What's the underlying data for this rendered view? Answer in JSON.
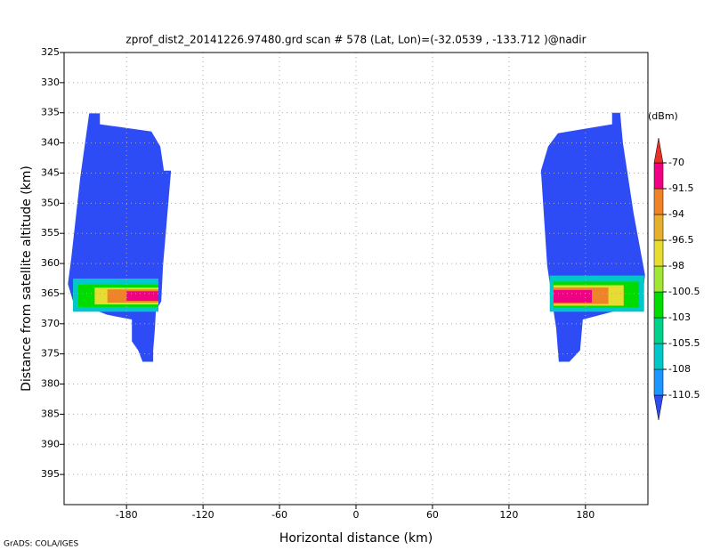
{
  "chart_data": {
    "type": "field",
    "title": "zprof_dist2_20141226.97480.grd  scan # 578  (Lat, Lon)=(-32.0539 , -133.712 )@nadir",
    "xlabel": "Horizontal distance (km)",
    "ylabel": "Distance from satellite altitude (km)",
    "footer": "GrADS: COLA/IGES",
    "colorbar_label": "(dBm)",
    "xlim": [
      -229,
      229
    ],
    "ylim": [
      325,
      400
    ],
    "y_reversed": true,
    "xticks": [
      -180,
      -120,
      -60,
      0,
      60,
      120,
      180
    ],
    "yticks": [
      325,
      330,
      335,
      340,
      345,
      350,
      355,
      360,
      365,
      370,
      375,
      380,
      385,
      390,
      395
    ],
    "grid": true,
    "levels": [
      -110.5,
      -108,
      -105.5,
      -103,
      -100.5,
      -98,
      -96.5,
      -94,
      -91.5,
      -70
    ],
    "level_colors": [
      "#2d4cf5",
      "#1e96ff",
      "#00c8c8",
      "#00d28c",
      "#00dc00",
      "#a0e632",
      "#e6dc32",
      "#e6af2d",
      "#f08228",
      "#f00082",
      "#e63228"
    ],
    "regions": [
      {
        "value": -112,
        "x": [
          -209.3,
          -200.9,
          -200.9,
          -160.5,
          -153.5,
          -150.7,
          -145.1,
          -151.4,
          -152.8,
          -157.0,
          -157.7,
          -159.1,
          -159.1,
          -167.4,
          -170.9,
          -175.8,
          -175.8,
          -195.3,
          -221.9,
          -226.0,
          -223.3,
          -216.3
        ],
        "y": [
          335.1,
          335.1,
          336.9,
          338.1,
          340.6,
          344.6,
          344.6,
          360.4,
          366.3,
          367.8,
          370.7,
          374.4,
          376.3,
          376.3,
          374.4,
          372.9,
          369.3,
          368.5,
          366.3,
          363.4,
          359.0,
          345.7
        ]
      },
      {
        "value": -112,
        "x": [
          145.1,
          150.7,
          158.4,
          200.9,
          200.9,
          207.2,
          209.3,
          217.7,
          226.7,
          224.7,
          217.7,
          177.9,
          175.8,
          167.4,
          159.1,
          157.0,
          154.9,
          152.1,
          150.0
        ],
        "y": [
          344.6,
          340.6,
          338.4,
          336.9,
          335.0,
          335.0,
          339.9,
          351.6,
          361.9,
          365.6,
          367.1,
          369.3,
          374.4,
          376.3,
          376.3,
          370.7,
          367.8,
          363.4,
          360.4
        ]
      },
      {
        "value": -107,
        "x": [
          -222,
          -155,
          -155,
          -222
        ],
        "y": [
          362.5,
          362.5,
          368,
          368
        ]
      },
      {
        "value": -102,
        "x": [
          -218,
          -155,
          -155,
          -218
        ],
        "y": [
          363.5,
          363.5,
          367.2,
          367.2
        ]
      },
      {
        "value": -97,
        "x": [
          -205,
          -155,
          -155,
          -205
        ],
        "y": [
          364,
          364,
          366.8,
          366.8
        ]
      },
      {
        "value": -93,
        "x": [
          -195,
          -155,
          -155,
          -195
        ],
        "y": [
          364.3,
          364.3,
          366.5,
          366.5
        ]
      },
      {
        "value": -85,
        "x": [
          -180,
          -155,
          -155,
          -180
        ],
        "y": [
          364.6,
          364.6,
          366.2,
          366.2
        ]
      },
      {
        "value": -107,
        "x": [
          152,
          226,
          226,
          152
        ],
        "y": [
          362,
          362,
          368,
          368
        ]
      },
      {
        "value": -102,
        "x": [
          155,
          222,
          222,
          155
        ],
        "y": [
          363,
          363,
          367.3,
          367.3
        ]
      },
      {
        "value": -97,
        "x": [
          155,
          210,
          210,
          155
        ],
        "y": [
          363.6,
          363.6,
          367,
          367
        ]
      },
      {
        "value": -93,
        "x": [
          155,
          198,
          198,
          155
        ],
        "y": [
          364,
          364,
          366.7,
          366.7
        ]
      },
      {
        "value": -85,
        "x": [
          155,
          185,
          185,
          155
        ],
        "y": [
          364.4,
          364.4,
          366.5,
          366.5
        ]
      }
    ]
  }
}
